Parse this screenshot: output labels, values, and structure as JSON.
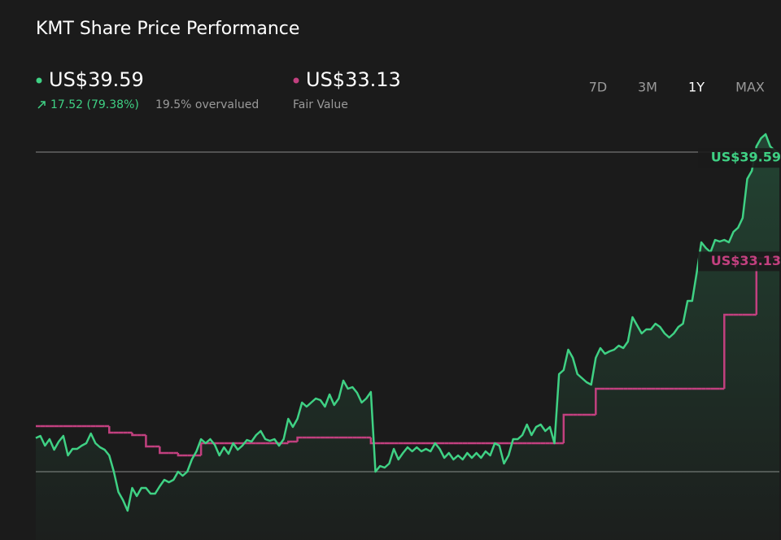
{
  "chart_data": {
    "type": "line",
    "title": "KMT Share Price Performance",
    "change": "17.52 (79.38%)",
    "valuation": "19.5% overvalued",
    "ranges": [
      "7D",
      "3M",
      "1Y",
      "MAX"
    ],
    "selected_range": 2,
    "ylim": [
      17,
      45
    ],
    "series": [
      {
        "name": "US$39.59",
        "color": "#3fd184",
        "values": [
          22.07,
          22.2,
          21.6,
          22.0,
          21.35,
          21.85,
          22.2,
          21.0,
          21.4,
          21.4,
          21.6,
          21.75,
          22.35,
          21.75,
          21.5,
          21.35,
          21.0,
          20.0,
          18.75,
          18.25,
          17.6,
          19.0,
          18.5,
          19.0,
          19.0,
          18.65,
          18.65,
          19.1,
          19.5,
          19.35,
          19.5,
          20.0,
          19.75,
          20.0,
          20.75,
          21.25,
          22.0,
          21.75,
          22.0,
          21.65,
          21.0,
          21.5,
          21.1,
          21.75,
          21.35,
          21.6,
          21.95,
          21.85,
          22.25,
          22.5,
          22.0,
          21.9,
          22.0,
          21.6,
          22.0,
          23.25,
          22.75,
          23.25,
          24.25,
          24.0,
          24.25,
          24.5,
          24.4,
          24.0,
          24.75,
          24.1,
          24.5,
          25.6,
          25.1,
          25.2,
          24.85,
          24.25,
          24.5,
          24.9,
          20.0,
          20.35,
          20.25,
          20.5,
          21.4,
          20.75,
          21.15,
          21.5,
          21.25,
          21.5,
          21.25,
          21.4,
          21.25,
          21.75,
          21.4,
          20.85,
          21.15,
          20.75,
          21.0,
          20.75,
          21.15,
          20.85,
          21.15,
          20.85,
          21.25,
          21.0,
          21.75,
          21.6,
          20.5,
          21.0,
          22.0,
          22.0,
          22.25,
          22.9,
          22.25,
          22.75,
          22.9,
          22.5,
          22.75,
          21.75,
          26.0,
          26.25,
          27.5,
          27.0,
          26.0,
          25.75,
          25.5,
          25.35,
          27.0,
          27.6,
          27.25,
          27.4,
          27.5,
          27.75,
          27.6,
          28.0,
          29.5,
          29.0,
          28.5,
          28.75,
          28.75,
          29.1,
          28.9,
          28.5,
          28.25,
          28.5,
          28.9,
          29.1,
          30.5,
          30.5,
          32.25,
          34.1,
          33.75,
          33.5,
          34.25,
          34.15,
          34.25,
          34.1,
          34.75,
          35.0,
          35.6,
          38.0,
          38.5,
          40.0,
          40.5,
          40.75,
          40.0,
          39.75,
          39.59
        ]
      },
      {
        "name": "US$33.13",
        "caption": "Fair Value",
        "color": "#c2407f",
        "shape": "step",
        "values": [
          22.8,
          22.8,
          22.8,
          22.8,
          22.8,
          22.8,
          22.8,
          22.8,
          22.8,
          22.8,
          22.8,
          22.8,
          22.8,
          22.8,
          22.8,
          22.8,
          22.4,
          22.4,
          22.4,
          22.4,
          22.4,
          22.25,
          22.25,
          22.25,
          21.55,
          21.55,
          21.55,
          21.15,
          21.15,
          21.15,
          21.15,
          21.0,
          21.0,
          21.0,
          21.0,
          21.0,
          21.75,
          21.75,
          21.75,
          21.75,
          21.75,
          21.75,
          21.75,
          21.75,
          21.75,
          21.75,
          21.75,
          21.75,
          21.75,
          21.75,
          21.75,
          21.75,
          21.75,
          21.75,
          21.75,
          21.85,
          21.85,
          22.1,
          22.1,
          22.1,
          22.1,
          22.1,
          22.1,
          22.1,
          22.1,
          22.1,
          22.1,
          22.1,
          22.1,
          22.1,
          22.1,
          22.1,
          22.1,
          21.75,
          21.75,
          21.75,
          21.75,
          21.75,
          21.75,
          21.75,
          21.75,
          21.75,
          21.75,
          21.75,
          21.75,
          21.75,
          21.75,
          21.75,
          21.75,
          21.75,
          21.75,
          21.75,
          21.75,
          21.75,
          21.75,
          21.75,
          21.75,
          21.75,
          21.75,
          21.75,
          21.75,
          21.75,
          21.75,
          21.75,
          21.75,
          21.75,
          21.75,
          21.75,
          21.75,
          21.75,
          21.75,
          21.75,
          21.75,
          21.75,
          21.75,
          23.5,
          23.5,
          23.5,
          23.5,
          23.5,
          23.5,
          23.5,
          25.1,
          25.1,
          25.1,
          25.1,
          25.1,
          25.1,
          25.1,
          25.1,
          25.1,
          25.1,
          25.1,
          25.1,
          25.1,
          25.1,
          25.1,
          25.1,
          25.1,
          25.1,
          25.1,
          25.1,
          25.1,
          25.1,
          25.1,
          25.1,
          25.1,
          25.1,
          25.1,
          25.1,
          29.65,
          29.65,
          29.65,
          29.65,
          29.65,
          29.65,
          29.65,
          33.13,
          33.13,
          33.13,
          33.13,
          33.13,
          33.13
        ]
      }
    ]
  }
}
